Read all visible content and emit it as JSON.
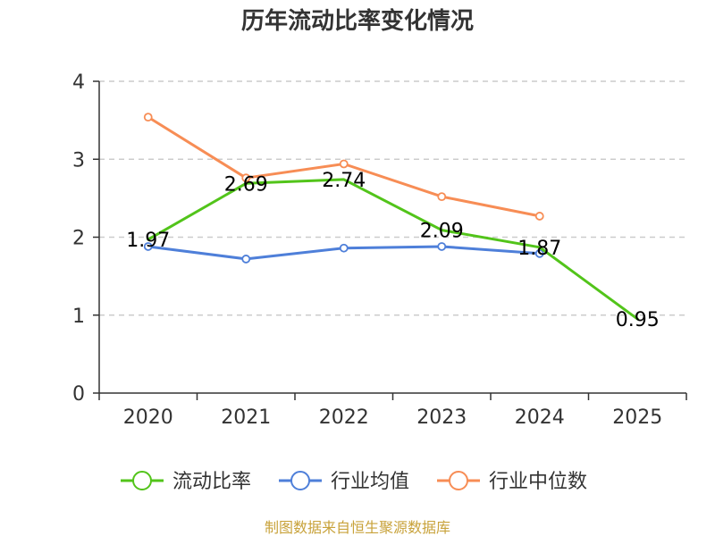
{
  "chart_data": {
    "type": "line",
    "title": "历年流动比率变化情况",
    "categories": [
      "2020",
      "2021",
      "2022",
      "2023",
      "2024",
      "2025"
    ],
    "ylim": [
      0,
      4
    ],
    "yticks": [
      "0",
      "1",
      "2",
      "3",
      "4"
    ],
    "grid": true,
    "legend_position": "bottom",
    "series": [
      {
        "name": "流动比率",
        "color": "#52c41a",
        "values": [
          1.97,
          2.69,
          2.74,
          2.09,
          1.87,
          0.95
        ],
        "labels": [
          "1.97",
          "2.69",
          "2.74",
          "2.09",
          "1.87",
          "0.95"
        ]
      },
      {
        "name": "行业均值",
        "color": "#4e7fd9",
        "values": [
          1.88,
          1.72,
          1.86,
          1.88,
          1.79,
          null
        ]
      },
      {
        "name": "行业中位数",
        "color": "#f78d55",
        "values": [
          3.54,
          2.76,
          2.94,
          2.52,
          2.27,
          null
        ]
      }
    ]
  },
  "source": {
    "text": "制图数据来自恒生聚源数据库",
    "color": "#c8a23a"
  },
  "colors": {
    "axis": "#333333",
    "grid": "#cccccc"
  }
}
